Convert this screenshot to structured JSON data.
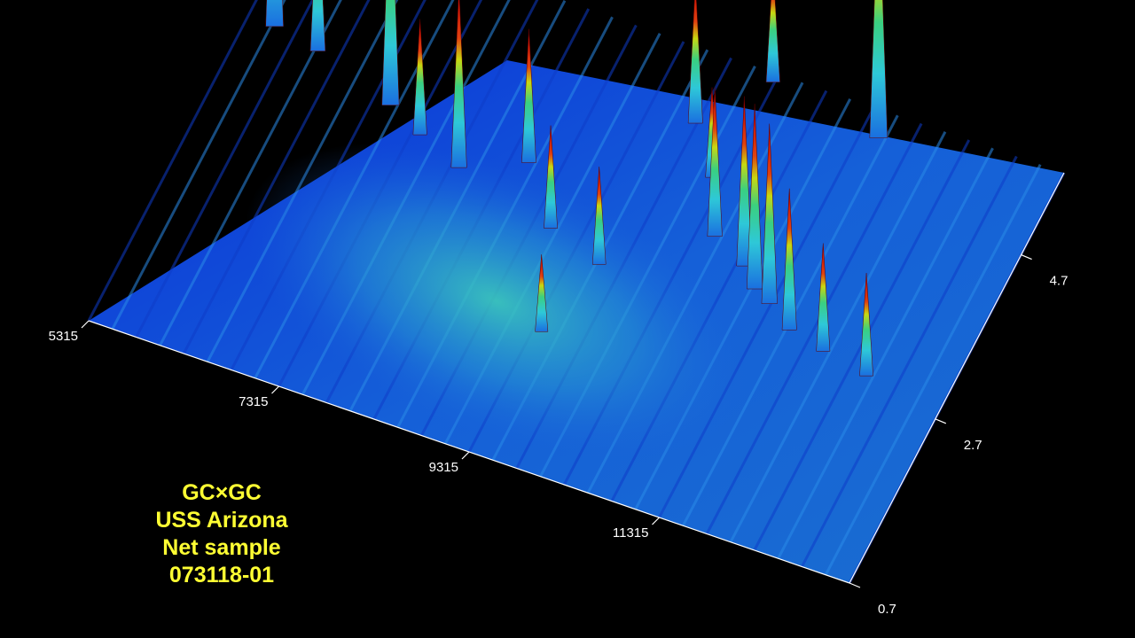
{
  "caption": {
    "line1": "GC×GC",
    "line2": "USS Arizona",
    "line3": "Net sample",
    "line4": "073118-01"
  },
  "chart_data": {
    "type": "surface",
    "first_dimension_ticks": [
      "5315",
      "7315",
      "9315",
      "11315"
    ],
    "second_dimension_ticks": [
      "0.7",
      "2.7",
      "4.7"
    ],
    "colormap": [
      "#0a1fd0",
      "#1a6fe0",
      "#2ec8d8",
      "#3ad080",
      "#8fd020",
      "#e0d010",
      "#e04010",
      "#c00000"
    ],
    "grid": false,
    "background": "#000000",
    "peaks": [
      {
        "x": 5600,
        "y": 4.4,
        "h": 1.0
      },
      {
        "x": 6100,
        "y": 4.3,
        "h": 0.62
      },
      {
        "x": 7000,
        "y": 4.0,
        "h": 0.93
      },
      {
        "x": 7400,
        "y": 3.8,
        "h": 0.45
      },
      {
        "x": 7900,
        "y": 3.6,
        "h": 0.7
      },
      {
        "x": 8500,
        "y": 3.9,
        "h": 0.52
      },
      {
        "x": 9000,
        "y": 3.3,
        "h": 0.4
      },
      {
        "x": 9600,
        "y": 3.1,
        "h": 0.38
      },
      {
        "x": 9800,
        "y": 4.9,
        "h": 0.55
      },
      {
        "x": 10200,
        "y": 4.4,
        "h": 0.35
      },
      {
        "x": 10500,
        "y": 3.8,
        "h": 0.58
      },
      {
        "x": 10900,
        "y": 3.6,
        "h": 0.66
      },
      {
        "x": 11100,
        "y": 3.4,
        "h": 0.72
      },
      {
        "x": 11300,
        "y": 3.3,
        "h": 0.7
      },
      {
        "x": 11600,
        "y": 3.1,
        "h": 0.55
      },
      {
        "x": 12000,
        "y": 3.0,
        "h": 0.42
      },
      {
        "x": 12500,
        "y": 2.9,
        "h": 0.4
      },
      {
        "x": 11500,
        "y": 5.4,
        "h": 1.0
      },
      {
        "x": 10300,
        "y": 5.6,
        "h": 0.45
      },
      {
        "x": 9400,
        "y": 2.2,
        "h": 0.3
      }
    ]
  }
}
